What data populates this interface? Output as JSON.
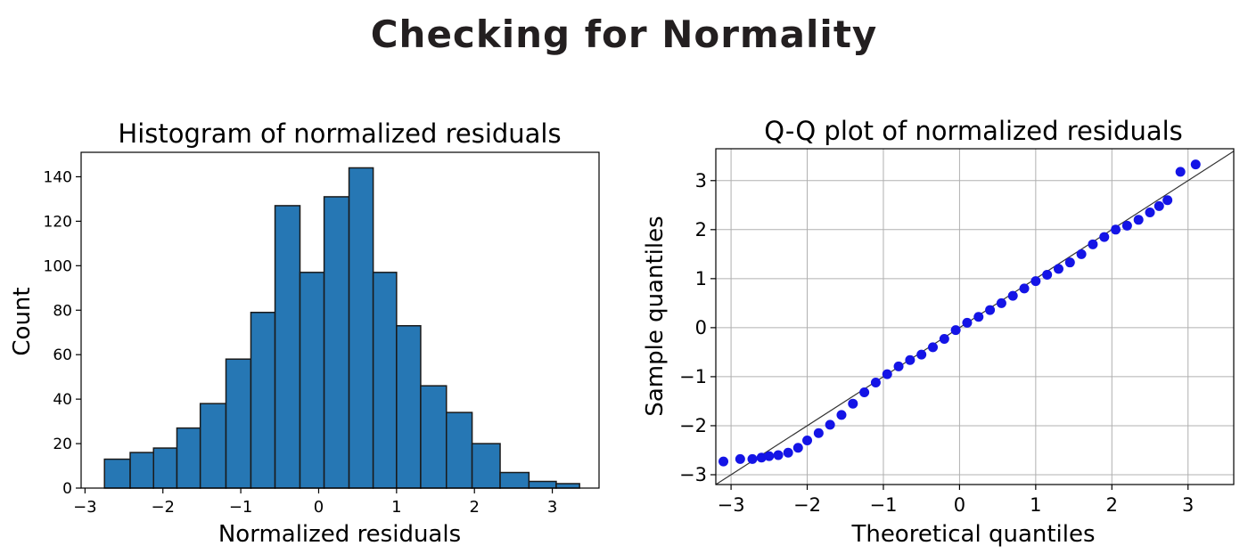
{
  "suptitle": "Checking for Normality",
  "chart_data": [
    {
      "type": "bar",
      "title": "Histogram of normalized residuals",
      "xlabel": "Normalized residuals",
      "ylabel": "Count",
      "xlim": [
        -3.05,
        3.6
      ],
      "ylim": [
        0,
        151
      ],
      "xticks": [
        -3,
        -2,
        -1,
        0,
        1,
        2,
        3
      ],
      "xtick_labels": [
        "−3",
        "−2",
        "−1",
        "0",
        "1",
        "2",
        "3"
      ],
      "yticks": [
        0,
        20,
        40,
        60,
        80,
        100,
        120,
        140
      ],
      "ytick_labels": [
        "0",
        "20",
        "40",
        "60",
        "80",
        "100",
        "120",
        "140"
      ],
      "grid": false,
      "bar_color": "#2677b4",
      "edge_color": "#1a1a1a",
      "bins": [
        {
          "x0": -2.75,
          "x1": -2.42,
          "count": 13
        },
        {
          "x0": -2.42,
          "x1": -2.12,
          "count": 16
        },
        {
          "x0": -2.12,
          "x1": -1.82,
          "count": 18
        },
        {
          "x0": -1.82,
          "x1": -1.52,
          "count": 27
        },
        {
          "x0": -1.52,
          "x1": -1.19,
          "count": 38
        },
        {
          "x0": -1.19,
          "x1": -0.87,
          "count": 58
        },
        {
          "x0": -0.87,
          "x1": -0.56,
          "count": 79
        },
        {
          "x0": -0.56,
          "x1": -0.24,
          "count": 127
        },
        {
          "x0": -0.24,
          "x1": 0.07,
          "count": 97
        },
        {
          "x0": 0.07,
          "x1": 0.39,
          "count": 131
        },
        {
          "x0": 0.39,
          "x1": 0.7,
          "count": 144
        },
        {
          "x0": 0.7,
          "x1": 1.0,
          "count": 97
        },
        {
          "x0": 1.0,
          "x1": 1.31,
          "count": 73
        },
        {
          "x0": 1.31,
          "x1": 1.64,
          "count": 46
        },
        {
          "x0": 1.64,
          "x1": 1.97,
          "count": 34
        },
        {
          "x0": 1.97,
          "x1": 2.33,
          "count": 20
        },
        {
          "x0": 2.33,
          "x1": 2.7,
          "count": 7
        },
        {
          "x0": 2.7,
          "x1": 3.05,
          "count": 3
        },
        {
          "x0": 3.05,
          "x1": 3.35,
          "count": 2
        }
      ]
    },
    {
      "type": "scatter",
      "title": "Q-Q plot of normalized residuals",
      "xlabel": "Theoretical quantiles",
      "ylabel": "Sample quantiles",
      "xlim": [
        -3.2,
        3.6
      ],
      "ylim": [
        -3.2,
        3.65
      ],
      "xticks": [
        -3,
        -2,
        -1,
        0,
        1,
        2,
        3
      ],
      "xtick_labels": [
        "−3",
        "−2",
        "−1",
        "0",
        "1",
        "2",
        "3"
      ],
      "yticks": [
        -3,
        -2,
        -1,
        0,
        1,
        2,
        3
      ],
      "ytick_labels": [
        "−3",
        "−2",
        "−1",
        "0",
        "1",
        "2",
        "3"
      ],
      "grid": true,
      "point_color": "#1414e6",
      "reference_line": {
        "x": [
          -3.2,
          3.6
        ],
        "y": [
          -3.2,
          3.6
        ],
        "color": "#333333"
      },
      "points": [
        [
          -3.1,
          -2.73
        ],
        [
          -2.88,
          -2.68
        ],
        [
          -2.72,
          -2.68
        ],
        [
          -2.6,
          -2.65
        ],
        [
          -2.5,
          -2.62
        ],
        [
          -2.38,
          -2.6
        ],
        [
          -2.25,
          -2.55
        ],
        [
          -2.12,
          -2.45
        ],
        [
          -2.0,
          -2.3
        ],
        [
          -1.85,
          -2.15
        ],
        [
          -1.7,
          -1.98
        ],
        [
          -1.55,
          -1.78
        ],
        [
          -1.4,
          -1.55
        ],
        [
          -1.25,
          -1.32
        ],
        [
          -1.1,
          -1.12
        ],
        [
          -0.95,
          -0.95
        ],
        [
          -0.8,
          -0.79
        ],
        [
          -0.65,
          -0.66
        ],
        [
          -0.5,
          -0.55
        ],
        [
          -0.35,
          -0.4
        ],
        [
          -0.2,
          -0.23
        ],
        [
          -0.05,
          -0.05
        ],
        [
          0.1,
          0.1
        ],
        [
          0.25,
          0.22
        ],
        [
          0.4,
          0.36
        ],
        [
          0.55,
          0.5
        ],
        [
          0.7,
          0.65
        ],
        [
          0.85,
          0.8
        ],
        [
          1.0,
          0.95
        ],
        [
          1.15,
          1.08
        ],
        [
          1.3,
          1.2
        ],
        [
          1.45,
          1.33
        ],
        [
          1.6,
          1.5
        ],
        [
          1.75,
          1.7
        ],
        [
          1.9,
          1.85
        ],
        [
          2.05,
          2.0
        ],
        [
          2.2,
          2.08
        ],
        [
          2.35,
          2.2
        ],
        [
          2.5,
          2.35
        ],
        [
          2.62,
          2.48
        ],
        [
          2.73,
          2.6
        ],
        [
          2.9,
          3.18
        ],
        [
          3.1,
          3.33
        ]
      ]
    }
  ]
}
